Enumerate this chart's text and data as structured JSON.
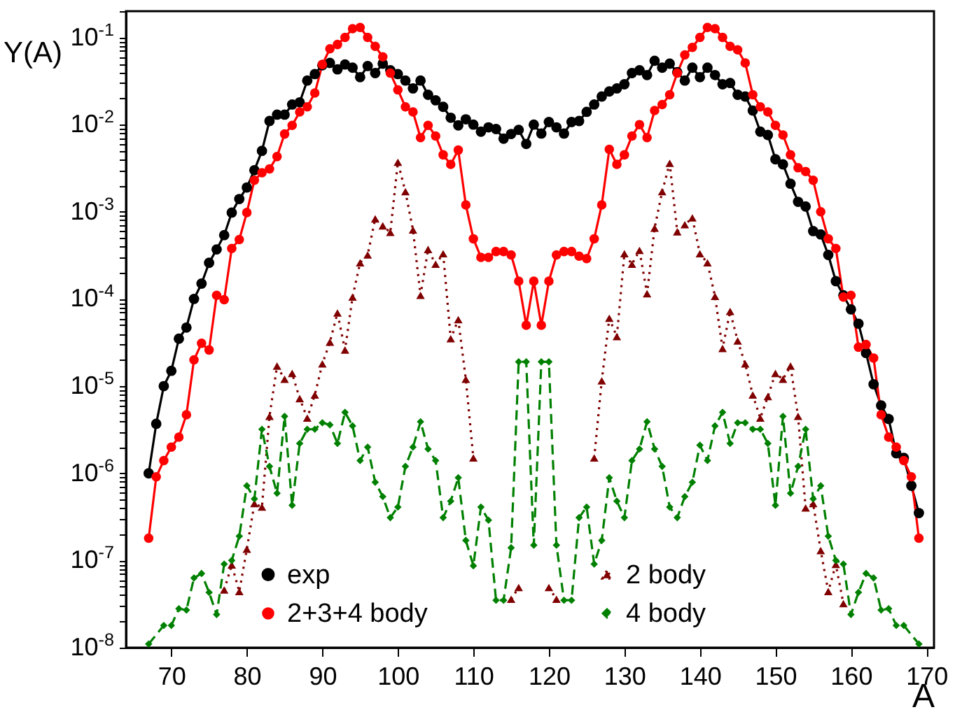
{
  "chart_data": {
    "type": "line",
    "xlabel": "A",
    "ylabel": "Y(A)",
    "log": "y",
    "legend": "bottom",
    "xlim": [
      64,
      171
    ],
    "xticks": [
      70,
      80,
      90,
      100,
      110,
      120,
      130,
      140,
      150,
      160,
      170
    ],
    "ylim": [
      1e-08,
      0.2
    ],
    "yticks": [
      {
        "value": 1e-08,
        "label": "10$^{-8}$"
      },
      {
        "value": 2e-08,
        "label": null
      },
      {
        "value": 3e-08,
        "label": null
      },
      {
        "value": 4e-08,
        "label": null
      },
      {
        "value": 5e-08,
        "label": null
      },
      {
        "value": 6e-08,
        "label": null
      },
      {
        "value": 7e-08,
        "label": null
      },
      {
        "value": 8e-08,
        "label": null
      },
      {
        "value": 9e-08,
        "label": null
      },
      {
        "value": 1e-07,
        "label": "10$^{-7}$"
      },
      {
        "value": 2e-07,
        "label": null
      },
      {
        "value": 3e-07,
        "label": null
      },
      {
        "value": 4e-07,
        "label": null
      },
      {
        "value": 5e-07,
        "label": null
      },
      {
        "value": 6e-07,
        "label": null
      },
      {
        "value": 7e-07,
        "label": null
      },
      {
        "value": 8e-07,
        "label": null
      },
      {
        "value": 9e-07,
        "label": null
      },
      {
        "value": 1e-06,
        "label": "10$^{-6}$"
      },
      {
        "value": 2e-06,
        "label": null
      },
      {
        "value": 3e-06,
        "label": null
      },
      {
        "value": 4e-06,
        "label": null
      },
      {
        "value": 5e-06,
        "label": null
      },
      {
        "value": 6e-06,
        "label": null
      },
      {
        "value": 7e-06,
        "label": null
      },
      {
        "value": 8e-06,
        "label": null
      },
      {
        "value": 9e-06,
        "label": null
      },
      {
        "value": 1e-05,
        "label": "10$^{-5}$"
      },
      {
        "value": 2e-05,
        "label": null
      },
      {
        "value": 3e-05,
        "label": null
      },
      {
        "value": 4e-05,
        "label": null
      },
      {
        "value": 5e-05,
        "label": null
      },
      {
        "value": 6e-05,
        "label": null
      },
      {
        "value": 7e-05,
        "label": null
      },
      {
        "value": 8e-05,
        "label": null
      },
      {
        "value": 9e-05,
        "label": null
      },
      {
        "value": 0.0001,
        "label": "10$^{-4}$"
      },
      {
        "value": 0.0002,
        "label": null
      },
      {
        "value": 0.0003,
        "label": null
      },
      {
        "value": 0.0004,
        "label": null
      },
      {
        "value": 0.0005,
        "label": null
      },
      {
        "value": 0.0006,
        "label": null
      },
      {
        "value": 0.0007,
        "label": null
      },
      {
        "value": 0.0008,
        "label": null
      },
      {
        "value": 0.0009,
        "label": null
      },
      {
        "value": 0.001,
        "label": "10$^{-3}$"
      },
      {
        "value": 0.002,
        "label": null
      },
      {
        "value": 0.003,
        "label": null
      },
      {
        "value": 0.004,
        "label": null
      },
      {
        "value": 0.005,
        "label": null
      },
      {
        "value": 0.006,
        "label": null
      },
      {
        "value": 0.007,
        "label": null
      },
      {
        "value": 0.008,
        "label": null
      },
      {
        "value": 0.009,
        "label": null
      },
      {
        "value": 0.01,
        "label": "10$^{-2}$"
      },
      {
        "value": 0.02,
        "label": null
      },
      {
        "value": 0.03,
        "label": null
      },
      {
        "value": 0.04,
        "label": null
      },
      {
        "value": 0.05,
        "label": null
      },
      {
        "value": 0.06,
        "label": null
      },
      {
        "value": 0.07,
        "label": null
      },
      {
        "value": 0.08,
        "label": null
      },
      {
        "value": 0.09,
        "label": null
      },
      {
        "value": 0.1,
        "label": "10$^{-1}$"
      },
      {
        "value": 0.2,
        "label": null
      }
    ],
    "x": [
      67,
      68,
      69,
      70,
      71,
      72,
      73,
      74,
      75,
      76,
      77,
      78,
      79,
      80,
      81,
      82,
      83,
      84,
      85,
      86,
      87,
      88,
      89,
      90,
      91,
      92,
      93,
      94,
      95,
      96,
      97,
      98,
      99,
      100,
      101,
      102,
      103,
      104,
      105,
      106,
      107,
      108,
      109,
      110,
      111,
      112,
      113,
      114,
      115,
      116,
      117,
      118,
      119,
      120,
      121,
      122,
      123,
      124,
      125,
      126,
      127,
      128,
      129,
      130,
      131,
      132,
      133,
      134,
      135,
      136,
      137,
      138,
      139,
      140,
      141,
      142,
      143,
      144,
      145,
      146,
      147,
      148,
      149,
      150,
      151,
      152,
      153,
      154,
      155,
      156,
      157,
      158,
      159,
      160,
      161,
      162,
      163,
      164,
      165,
      166,
      167,
      168,
      169
    ],
    "series": [
      {
        "name": "exp",
        "color": "#000000",
        "marker": "circle",
        "line_style": "solid",
        "values": [
          1e-06,
          3.7e-06,
          1e-05,
          1.5e-05,
          3.5e-05,
          4.7e-05,
          0.0001,
          0.00015,
          0.00026,
          0.00037,
          0.00054,
          0.00098,
          0.0014,
          0.0019,
          0.003,
          0.005,
          0.011,
          0.013,
          0.013,
          0.017,
          0.018,
          0.032,
          0.038,
          0.048,
          0.051,
          0.043,
          0.049,
          0.045,
          0.035,
          0.047,
          0.039,
          0.05,
          0.042,
          0.038,
          0.032,
          0.026,
          0.032,
          0.022,
          0.019,
          0.016,
          0.012,
          0.0098,
          0.0115,
          0.01,
          0.0083,
          0.0093,
          0.0089,
          0.0069,
          0.0078,
          0.0087,
          0.006,
          0.01,
          0.0079,
          0.0107,
          0.0093,
          0.0079,
          0.0107,
          0.011,
          0.014,
          0.017,
          0.021,
          0.024,
          0.026,
          0.029,
          0.039,
          0.042,
          0.037,
          0.054,
          0.045,
          0.05,
          0.04,
          0.032,
          0.045,
          0.035,
          0.045,
          0.037,
          0.029,
          0.03,
          0.022,
          0.021,
          0.0145,
          0.0083,
          0.0076,
          0.004,
          0.0035,
          0.0021,
          0.0013,
          0.00115,
          0.0006,
          0.00055,
          0.00032,
          0.00016,
          0.00011,
          7.6e-05,
          5.2e-05,
          2.4e-05,
          1.05e-05,
          6e-06,
          4.2e-06,
          1.7e-06,
          1.5e-06,
          7.2e-07,
          3.5e-07
        ]
      },
      {
        "name": "2+3+4 body",
        "color": "#ff0000",
        "marker": "circle",
        "line_style": "solid",
        "values": [
          1.8e-07,
          9.1e-07,
          1.4e-06,
          2e-06,
          2.6e-06,
          4.7e-06,
          2e-05,
          3.1e-05,
          2.6e-05,
          0.00011,
          9.8e-05,
          0.00038,
          0.00048,
          0.00098,
          0.0023,
          0.0028,
          0.0031,
          0.0043,
          0.0078,
          0.0098,
          0.014,
          0.016,
          0.023,
          0.049,
          0.074,
          0.083,
          0.1,
          0.126,
          0.13,
          0.1,
          0.079,
          0.06,
          0.039,
          0.025,
          0.016,
          0.014,
          0.0071,
          0.0098,
          0.0074,
          0.0045,
          0.0035,
          0.0051,
          0.0012,
          0.00049,
          0.0003,
          0.0003,
          0.00035,
          0.00035,
          0.00032,
          0.00016,
          5e-05,
          0.00016,
          5e-05,
          0.00016,
          0.00032,
          0.00035,
          0.00035,
          0.00031,
          0.00029,
          0.00049,
          0.0012,
          0.0052,
          0.0035,
          0.0045,
          0.0074,
          0.01,
          0.0071,
          0.0145,
          0.017,
          0.022,
          0.039,
          0.063,
          0.077,
          0.1,
          0.13,
          0.126,
          0.1,
          0.079,
          0.072,
          0.051,
          0.022,
          0.016,
          0.014,
          0.0098,
          0.0076,
          0.0045,
          0.0032,
          0.0029,
          0.0023,
          0.001,
          0.00049,
          0.00038,
          0.000105,
          0.00011,
          2.8e-05,
          3e-05,
          2.1e-05,
          4.7e-06,
          2.6e-06,
          2e-06,
          1.4e-06,
          9.1e-07,
          1.8e-07
        ]
      },
      {
        "name": "2 body",
        "color": "#800000",
        "marker": "triangle",
        "line_style": "dotted",
        "values": [
          null,
          null,
          null,
          null,
          null,
          null,
          null,
          null,
          null,
          null,
          4.6e-08,
          8.9e-08,
          4.4e-08,
          1.35e-07,
          4.5e-07,
          4.1e-07,
          4.5e-06,
          1.7e-05,
          1.2e-05,
          1.4e-05,
          7.2e-06,
          4.3e-06,
          7.9e-06,
          1.8e-05,
          3.2e-05,
          6.9e-05,
          2.6e-05,
          0.000105,
          0.00026,
          0.00032,
          0.00083,
          0.00069,
          0.00058,
          0.0037,
          0.0017,
          0.00062,
          0.00011,
          0.00037,
          0.00025,
          0.00033,
          3.5e-05,
          5.8e-05,
          1.2e-05,
          1.5e-06,
          null,
          null,
          null,
          null,
          3.6e-08,
          4.9e-08,
          null,
          null,
          null,
          4.9e-08,
          3.6e-08,
          null,
          null,
          null,
          null,
          1.5e-06,
          1.15e-05,
          6e-05,
          3.7e-05,
          0.00033,
          0.00025,
          0.00036,
          0.000115,
          0.00065,
          0.0017,
          0.0036,
          0.00059,
          0.00071,
          0.00085,
          0.00033,
          0.00026,
          0.000107,
          2.7e-05,
          7.2e-05,
          3.3e-05,
          1.8e-05,
          7.9e-06,
          4.3e-06,
          7.6e-06,
          1.4e-05,
          1.2e-05,
          1.7e-05,
          4.5e-06,
          4e-07,
          4.5e-07,
          1.3e-07,
          4.4e-08,
          9e-08,
          3.2e-08,
          null,
          null,
          null,
          null,
          null,
          null,
          null,
          null,
          null,
          null
        ]
      },
      {
        "name": "4 body",
        "color": "#008000",
        "marker": "diamond",
        "line_style": "dashed",
        "x": [
          67,
          69,
          70,
          71,
          72,
          73,
          74,
          75,
          76,
          77,
          78,
          79,
          80,
          81,
          82,
          83,
          84,
          85,
          86,
          87,
          88,
          89,
          90,
          91,
          92,
          93,
          94,
          95,
          96,
          97,
          98,
          99,
          100,
          101,
          102,
          103,
          104,
          105,
          106,
          107,
          108,
          109,
          110,
          111,
          112,
          113,
          114,
          115,
          116,
          117,
          118,
          119,
          120,
          121,
          122,
          123,
          124,
          125,
          126,
          127,
          128,
          129,
          130,
          131,
          132,
          133,
          134,
          135,
          136,
          137,
          138,
          139,
          140,
          141,
          142,
          143,
          144,
          145,
          146,
          147,
          148,
          149,
          150,
          151,
          152,
          153,
          154,
          155,
          156,
          157,
          158,
          159,
          160,
          161,
          162,
          163,
          164,
          165,
          166,
          167,
          169
        ],
        "values": [
          1.1e-08,
          1.8e-08,
          1.8e-08,
          2.8e-08,
          2.7e-08,
          6.3e-08,
          7.1e-08,
          4.3e-08,
          2.4e-08,
          9.1e-08,
          1e-07,
          1.9e-07,
          7.2e-07,
          5.1e-07,
          3.2e-06,
          1.2e-06,
          5.9e-07,
          4.5e-06,
          4.3e-07,
          2.2e-06,
          3.2e-06,
          3.2e-06,
          3.8e-06,
          3.6e-06,
          2.2e-06,
          5e-06,
          3.5e-06,
          1.4e-06,
          2e-06,
          7.9e-07,
          5.4e-07,
          3.1e-07,
          4.1e-07,
          1.2e-06,
          2e-06,
          3.9e-06,
          1.9e-06,
          1.4e-06,
          3.1e-07,
          4.8e-07,
          8.9e-07,
          1.7e-07,
          8.7e-08,
          4.1e-07,
          2.9e-07,
          3.5e-08,
          3.5e-08,
          1.4e-07,
          1.9e-05,
          1.9e-05,
          1.5e-07,
          1.9e-05,
          1.9e-05,
          1.5e-07,
          3.5e-08,
          3.5e-08,
          3.1e-07,
          4.1e-07,
          9.1e-08,
          1.7e-07,
          8.9e-07,
          4.8e-07,
          3.1e-07,
          1.4e-06,
          1.9e-06,
          3.9e-06,
          1.9e-06,
          1.2e-06,
          4.1e-07,
          3.1e-07,
          5.4e-07,
          7.9e-07,
          2.1e-06,
          1.4e-06,
          3.5e-06,
          5e-06,
          2.2e-06,
          3.8e-06,
          3.8e-06,
          3.2e-06,
          3.2e-06,
          2.2e-06,
          4.3e-07,
          4.5e-06,
          5.9e-07,
          1.2e-06,
          3.2e-06,
          5.1e-07,
          7.2e-07,
          1.9e-07,
          1e-07,
          9.1e-08,
          2.4e-08,
          4.3e-08,
          7.1e-08,
          6.3e-08,
          2.7e-08,
          2.8e-08,
          1.8e-08,
          1.8e-08,
          1.1e-08
        ]
      }
    ]
  }
}
